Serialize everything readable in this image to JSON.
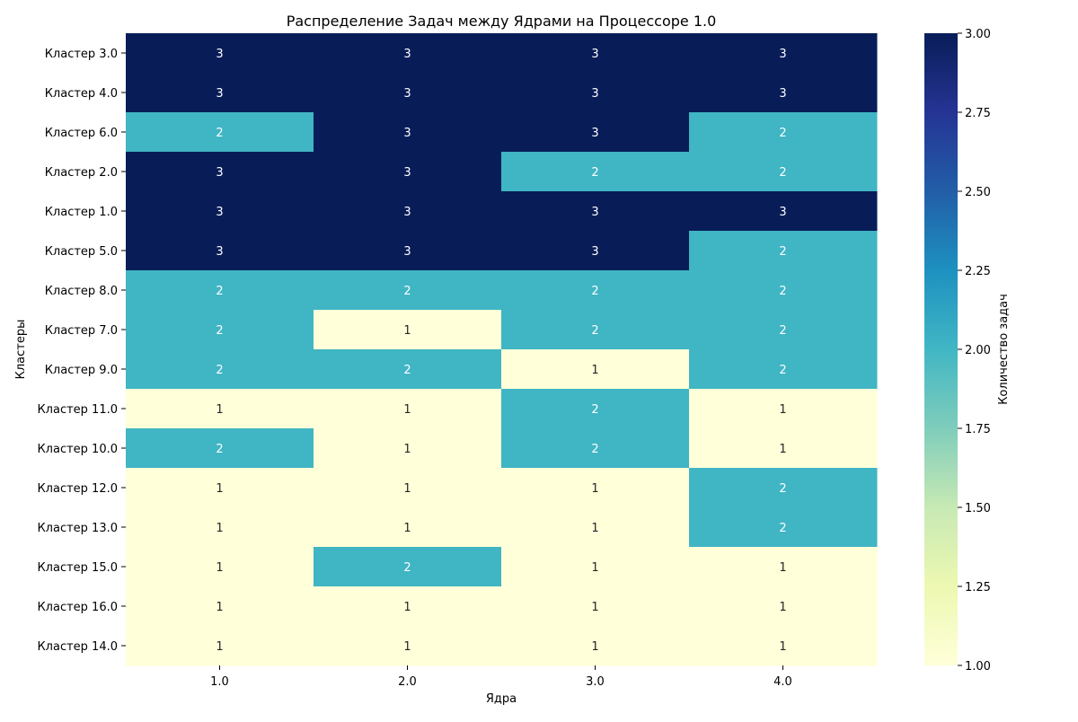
{
  "chart_data": {
    "type": "heatmap",
    "title": "Распределение Задач между Ядрами на Процессоре 1.0",
    "xlabel": "Ядра",
    "ylabel": "Кластеры",
    "x_categories": [
      "1.0",
      "2.0",
      "3.0",
      "4.0"
    ],
    "y_categories": [
      "Кластер 3.0",
      "Кластер 4.0",
      "Кластер 6.0",
      "Кластер 2.0",
      "Кластер 1.0",
      "Кластер 5.0",
      "Кластер 8.0",
      "Кластер 7.0",
      "Кластер 9.0",
      "Кластер 11.0",
      "Кластер 10.0",
      "Кластер 12.0",
      "Кластер 13.0",
      "Кластер 15.0",
      "Кластер 16.0",
      "Кластер 14.0"
    ],
    "values": [
      [
        3,
        3,
        3,
        3
      ],
      [
        3,
        3,
        3,
        3
      ],
      [
        2,
        3,
        3,
        2
      ],
      [
        3,
        3,
        2,
        2
      ],
      [
        3,
        3,
        3,
        3
      ],
      [
        3,
        3,
        3,
        2
      ],
      [
        2,
        2,
        2,
        2
      ],
      [
        2,
        1,
        2,
        2
      ],
      [
        2,
        2,
        1,
        2
      ],
      [
        1,
        1,
        2,
        1
      ],
      [
        2,
        1,
        2,
        1
      ],
      [
        1,
        1,
        1,
        2
      ],
      [
        1,
        1,
        1,
        2
      ],
      [
        1,
        2,
        1,
        1
      ],
      [
        1,
        1,
        1,
        1
      ],
      [
        1,
        1,
        1,
        1
      ]
    ],
    "colorbar": {
      "label": "Количество задач",
      "min": 1.0,
      "max": 3.0,
      "ticks": [
        "1.00",
        "1.25",
        "1.50",
        "1.75",
        "2.00",
        "2.25",
        "2.50",
        "2.75",
        "3.00"
      ],
      "colormap": "YlGnBu",
      "colors": {
        "1": "#ffffd9",
        "2": "#40b5c4",
        "3": "#081d58"
      }
    },
    "annotations": true,
    "grid": false
  }
}
